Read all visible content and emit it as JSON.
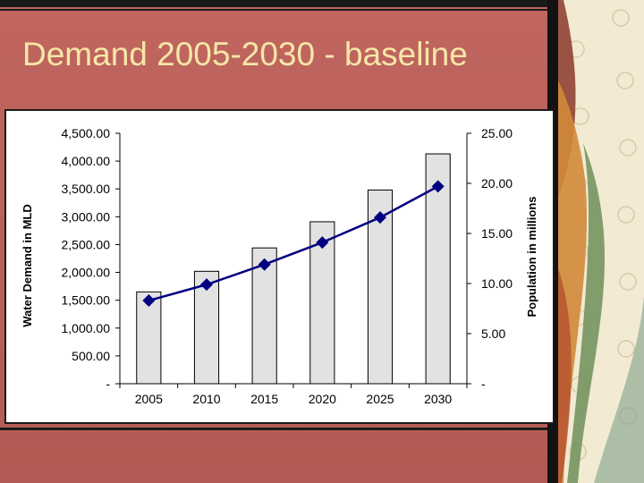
{
  "slide": {
    "title": "Demand 2005-2030 - baseline"
  },
  "chart_data": {
    "type": "bar",
    "categories": [
      "2005",
      "2010",
      "2015",
      "2020",
      "2025",
      "2030"
    ],
    "series": [
      {
        "type": "bar",
        "axis": "left",
        "values": [
          1650,
          2020,
          2440,
          2910,
          3480,
          4130
        ],
        "color": "#e2e2e2"
      },
      {
        "type": "line",
        "axis": "right",
        "values": [
          8.3,
          9.9,
          11.9,
          14.1,
          16.6,
          19.7
        ],
        "color": "#000080",
        "marker": "diamond"
      }
    ],
    "ylabel": "Water Demand in MLD",
    "ylabel_right": "Population in millions",
    "ylim": [
      0,
      4500
    ],
    "ylim_right": [
      0,
      25
    ],
    "yticks": [
      {
        "v": 0,
        "label": "-"
      },
      {
        "v": 500,
        "label": "500.00"
      },
      {
        "v": 1000,
        "label": "1,000.00"
      },
      {
        "v": 1500,
        "label": "1,500.00"
      },
      {
        "v": 2000,
        "label": "2,000.00"
      },
      {
        "v": 2500,
        "label": "2,500.00"
      },
      {
        "v": 3000,
        "label": "3,000.00"
      },
      {
        "v": 3500,
        "label": "3,500.00"
      },
      {
        "v": 4000,
        "label": "4,000.00"
      },
      {
        "v": 4500,
        "label": "4,500.00"
      }
    ],
    "yticks_right": [
      {
        "v": 0,
        "label": "-"
      },
      {
        "v": 5,
        "label": "5.00"
      },
      {
        "v": 10,
        "label": "10.00"
      },
      {
        "v": 15,
        "label": "15.00"
      },
      {
        "v": 20,
        "label": "20.00"
      },
      {
        "v": 25,
        "label": "25.00"
      }
    ],
    "grid": false,
    "legend": "none"
  }
}
